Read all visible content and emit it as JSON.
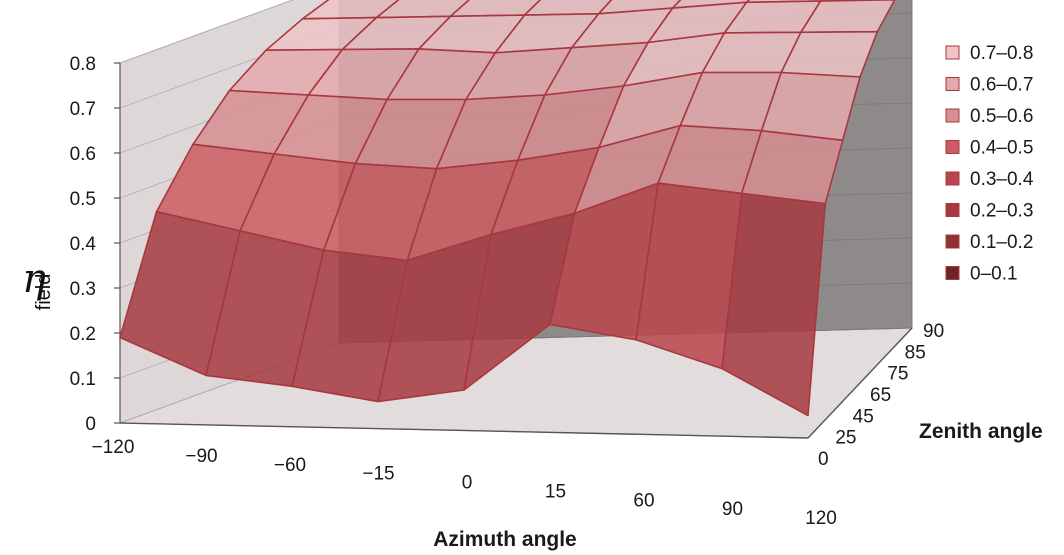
{
  "chart_data": {
    "type": "surface",
    "title": "",
    "ylabel_main": "η",
    "ylabel_sub": "field",
    "xlabel": "Azimuth angle",
    "zlabel": "Zenith angle",
    "azimuth_ticks": [
      "−120",
      "−90",
      "−60",
      "−15",
      "0",
      "15",
      "60",
      "90",
      "120"
    ],
    "zenith_ticks": [
      "0",
      "25",
      "45",
      "65",
      "75",
      "85",
      "90"
    ],
    "value_ticks": [
      "0",
      "0.1",
      "0.2",
      "0.3",
      "0.4",
      "0.5",
      "0.6",
      "0.7",
      "0.8"
    ],
    "zlim": [
      0,
      0.8
    ],
    "azimuth": [
      -120,
      -90,
      -60,
      -15,
      0,
      15,
      60,
      90,
      120
    ],
    "zenith": [
      0,
      25,
      45,
      65,
      75,
      85,
      90
    ],
    "values": [
      [
        0.19,
        0.11,
        0.09,
        0.06,
        0.09,
        0.24,
        0.21,
        0.15,
        0.05
      ],
      [
        0.44,
        0.4,
        0.36,
        0.34,
        0.4,
        0.45,
        0.52,
        0.5,
        0.48
      ],
      [
        0.56,
        0.54,
        0.52,
        0.51,
        0.53,
        0.56,
        0.61,
        0.6,
        0.58
      ],
      [
        0.65,
        0.64,
        0.63,
        0.63,
        0.64,
        0.66,
        0.69,
        0.69,
        0.68
      ],
      [
        0.71,
        0.71,
        0.71,
        0.7,
        0.71,
        0.72,
        0.74,
        0.74,
        0.74
      ],
      [
        0.75,
        0.75,
        0.75,
        0.75,
        0.75,
        0.76,
        0.77,
        0.77,
        0.77
      ],
      [
        0.78,
        0.78,
        0.78,
        0.78,
        0.78,
        0.78,
        0.78,
        0.78,
        0.78
      ]
    ],
    "legend": [
      {
        "label": "0.7–0.8",
        "color": "#eec4c6"
      },
      {
        "label": "0.6–0.7",
        "color": "#e3a9ac"
      },
      {
        "label": "0.5–0.6",
        "color": "#d68e92"
      },
      {
        "label": "0.4–0.5",
        "color": "#c95d62"
      },
      {
        "label": "0.3–0.4",
        "color": "#b8474d"
      },
      {
        "label": "0.2–0.3",
        "color": "#a53b41"
      },
      {
        "label": "0.1–0.2",
        "color": "#8e3236"
      },
      {
        "label": "0–0.1",
        "color": "#6e2427"
      }
    ],
    "wall_colors": {
      "left": "#ded7d8",
      "back": "#8e8a8a",
      "floor": "#e3dcdd"
    }
  }
}
